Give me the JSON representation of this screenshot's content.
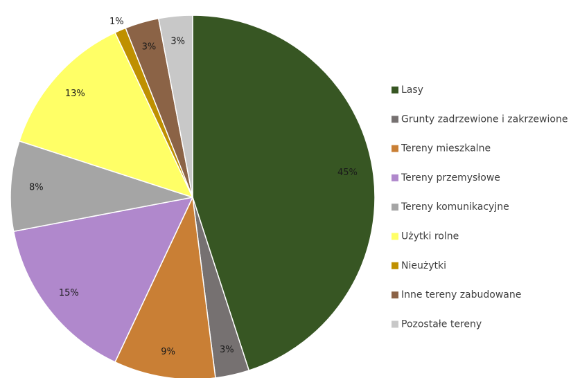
{
  "chart_data": {
    "type": "pie",
    "categories": [
      "Lasy",
      "Grunty zadrzewione i zakrzewione",
      "Tereny mieszkalne",
      "Tereny przemysłowe",
      "Tereny komunikacyjne",
      "Użytki rolne",
      "Nieużytki",
      "Inne tereny zabudowane",
      "Pozostałe tereny"
    ],
    "values": [
      45,
      3,
      9,
      15,
      8,
      13,
      1,
      3,
      3
    ],
    "value_labels": [
      "45%",
      "3%",
      "9%",
      "15%",
      "8%",
      "13%",
      "1%",
      "3%",
      "3%"
    ],
    "colors": [
      "#375623",
      "#767171",
      "#c97f35",
      "#b088cc",
      "#a5a5a5",
      "#ffff66",
      "#bf9000",
      "#8b6346",
      "#c8c8c8"
    ],
    "legend": "right"
  }
}
